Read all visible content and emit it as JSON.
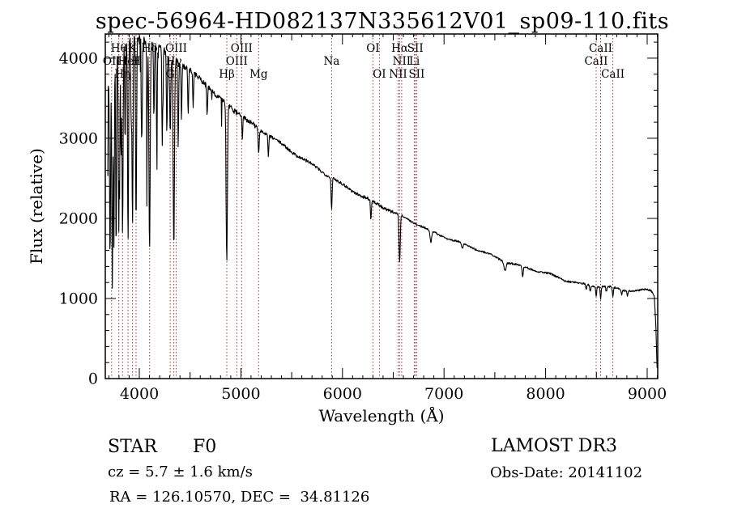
{
  "title": "spec-56964-HD082137N335612V01_sp09-110.fits",
  "chart_data": {
    "type": "line",
    "title": "spec-56964-HD082137N335612V01_sp09-110.fits",
    "xlabel": "Wavelength (Å)",
    "ylabel": "Flux (relative)",
    "xlim": [
      3665,
      9104
    ],
    "ylim": [
      0,
      4302
    ],
    "x_ticks": [
      4000,
      5000,
      6000,
      7000,
      8000,
      9000
    ],
    "y_ticks": [
      0,
      1000,
      2000,
      3000,
      4000
    ],
    "x_minor_step": 100,
    "y_minor_step": 200,
    "grid": false,
    "legend": "none",
    "curve_color": "#000000",
    "marker_color": "#9b3434",
    "spectral_lines": [
      {
        "label": "Hθ",
        "wavelength": 3798,
        "row": 1
      },
      {
        "label": "K",
        "wavelength": 3933,
        "row": 1
      },
      {
        "label": "Hδ",
        "wavelength": 4101,
        "row": 1
      },
      {
        "label": "OIII",
        "wavelength": 4363,
        "row": 1
      },
      {
        "label": "OIII",
        "wavelength": 5007,
        "row": 1
      },
      {
        "label": "OI",
        "wavelength": 6300,
        "row": 1
      },
      {
        "label": "Hα",
        "wavelength": 6563,
        "row": 1
      },
      {
        "label": "SII",
        "wavelength": 6717,
        "row": 1
      },
      {
        "label": "CaII",
        "wavelength": 8542,
        "row": 1
      },
      {
        "label": "OII",
        "wavelength": 3727,
        "row": 2
      },
      {
        "label": "HeI",
        "wavelength": 3889,
        "row": 2
      },
      {
        "label": "H",
        "wavelength": 3968,
        "row": 2
      },
      {
        "label": "Hγ",
        "wavelength": 4340,
        "row": 2
      },
      {
        "label": "OIII",
        "wavelength": 4959,
        "row": 2
      },
      {
        "label": "Na",
        "wavelength": 5893,
        "row": 2
      },
      {
        "label": "NII",
        "wavelength": 6583,
        "row": 2
      },
      {
        "label": "Li",
        "wavelength": 6708,
        "row": 2
      },
      {
        "label": "CaII",
        "wavelength": 8498,
        "row": 2
      },
      {
        "label": "Hη",
        "wavelength": 3835,
        "row": 3
      },
      {
        "label": "G",
        "wavelength": 4304,
        "row": 3
      },
      {
        "label": "Hβ",
        "wavelength": 4861,
        "row": 3
      },
      {
        "label": "Mg",
        "wavelength": 5175,
        "row": 3
      },
      {
        "label": "OI",
        "wavelength": 6364,
        "row": 3
      },
      {
        "label": "NII",
        "wavelength": 6548,
        "row": 3
      },
      {
        "label": "SII",
        "wavelength": 6731,
        "row": 3
      },
      {
        "label": "CaII",
        "wavelength": 8662,
        "row": 3
      }
    ],
    "continuum_points": [
      [
        3690,
        3600
      ],
      [
        3720,
        3950
      ],
      [
        3760,
        4050
      ],
      [
        3800,
        4100
      ],
      [
        3850,
        4180
      ],
      [
        3900,
        4230
      ],
      [
        3950,
        4260
      ],
      [
        4000,
        4260
      ],
      [
        4060,
        4230
      ],
      [
        4120,
        4190
      ],
      [
        4180,
        4140
      ],
      [
        4240,
        4080
      ],
      [
        4300,
        4010
      ],
      [
        4360,
        3950
      ],
      [
        4420,
        3900
      ],
      [
        4480,
        3850
      ],
      [
        4540,
        3800
      ],
      [
        4600,
        3740
      ],
      [
        4660,
        3670
      ],
      [
        4720,
        3590
      ],
      [
        4780,
        3510
      ],
      [
        4861,
        3430
      ],
      [
        4920,
        3370
      ],
      [
        4980,
        3300
      ],
      [
        5040,
        3240
      ],
      [
        5100,
        3180
      ],
      [
        5175,
        3110
      ],
      [
        5240,
        3060
      ],
      [
        5320,
        3000
      ],
      [
        5400,
        2930
      ],
      [
        5480,
        2860
      ],
      [
        5560,
        2790
      ],
      [
        5640,
        2720
      ],
      [
        5720,
        2650
      ],
      [
        5800,
        2580
      ],
      [
        5893,
        2500
      ],
      [
        6000,
        2420
      ],
      [
        6100,
        2350
      ],
      [
        6200,
        2280
      ],
      [
        6300,
        2210
      ],
      [
        6400,
        2140
      ],
      [
        6500,
        2070
      ],
      [
        6600,
        2010
      ],
      [
        6700,
        1950
      ],
      [
        6800,
        1890
      ],
      [
        6900,
        1830
      ],
      [
        7000,
        1780
      ],
      [
        7100,
        1720
      ],
      [
        7200,
        1670
      ],
      [
        7300,
        1620
      ],
      [
        7400,
        1570
      ],
      [
        7500,
        1520
      ],
      [
        7600,
        1470
      ],
      [
        7700,
        1430
      ],
      [
        7800,
        1390
      ],
      [
        7900,
        1350
      ],
      [
        8000,
        1310
      ],
      [
        8100,
        1270
      ],
      [
        8200,
        1230
      ],
      [
        8300,
        1200
      ],
      [
        8400,
        1180
      ],
      [
        8500,
        1160
      ],
      [
        8600,
        1140
      ],
      [
        8700,
        1120
      ],
      [
        8800,
        1100
      ],
      [
        8900,
        1090
      ],
      [
        9000,
        1120
      ],
      [
        9040,
        1110
      ],
      [
        9070,
        1050
      ],
      [
        9085,
        700
      ],
      [
        9095,
        250
      ],
      [
        9100,
        80
      ]
    ],
    "absorption_features": [
      [
        3712,
        0.62,
        5
      ],
      [
        3734,
        0.72,
        5
      ],
      [
        3750,
        0.6,
        4
      ],
      [
        3771,
        0.58,
        4
      ],
      [
        3798,
        0.55,
        5
      ],
      [
        3820,
        0.35,
        4
      ],
      [
        3835,
        0.58,
        5
      ],
      [
        3860,
        0.3,
        4
      ],
      [
        3889,
        0.6,
        5
      ],
      [
        3920,
        0.25,
        4
      ],
      [
        3933,
        0.55,
        5
      ],
      [
        3968,
        0.55,
        5
      ],
      [
        4026,
        0.28,
        4
      ],
      [
        4077,
        0.22,
        4
      ],
      [
        4101,
        0.62,
        6
      ],
      [
        4144,
        0.22,
        4
      ],
      [
        4172,
        0.28,
        4
      ],
      [
        4226,
        0.3,
        4
      ],
      [
        4271,
        0.25,
        4
      ],
      [
        4304,
        0.25,
        5
      ],
      [
        4340,
        0.6,
        6
      ],
      [
        4383,
        0.28,
        4
      ],
      [
        4415,
        0.18,
        4
      ],
      [
        4481,
        0.15,
        4
      ],
      [
        4530,
        0.12,
        4
      ],
      [
        4668,
        0.1,
        4
      ],
      [
        4861,
        0.58,
        6
      ],
      [
        5015,
        0.08,
        4
      ],
      [
        5175,
        0.1,
        5
      ],
      [
        5270,
        0.09,
        4
      ],
      [
        5893,
        0.15,
        5
      ],
      [
        6280,
        0.12,
        4
      ],
      [
        6563,
        0.3,
        6
      ],
      [
        6870,
        0.08,
        8
      ],
      [
        7180,
        0.04,
        8
      ],
      [
        7600,
        0.07,
        10
      ],
      [
        7774,
        0.09,
        6
      ],
      [
        8400,
        0.05,
        5
      ],
      [
        8440,
        0.06,
        5
      ],
      [
        8498,
        0.11,
        5
      ],
      [
        8542,
        0.13,
        5
      ],
      [
        8598,
        0.06,
        5
      ],
      [
        8662,
        0.11,
        5
      ],
      [
        8750,
        0.05,
        5
      ],
      [
        8806,
        0.05,
        5
      ]
    ],
    "noise": {
      "seed": 7,
      "blue_amp": 55,
      "teal_amp": 32,
      "mid_amp": 20,
      "far_amp": 12
    }
  },
  "footer": {
    "class_type": "STAR",
    "subclass": "F0",
    "velocity": "cz = 5.7 ± 1.6 km/s",
    "coordinates": "RA = 126.10570, DEC =  34.81126",
    "release": "LAMOST DR3",
    "obs_date": "Obs-Date: 20141102"
  }
}
